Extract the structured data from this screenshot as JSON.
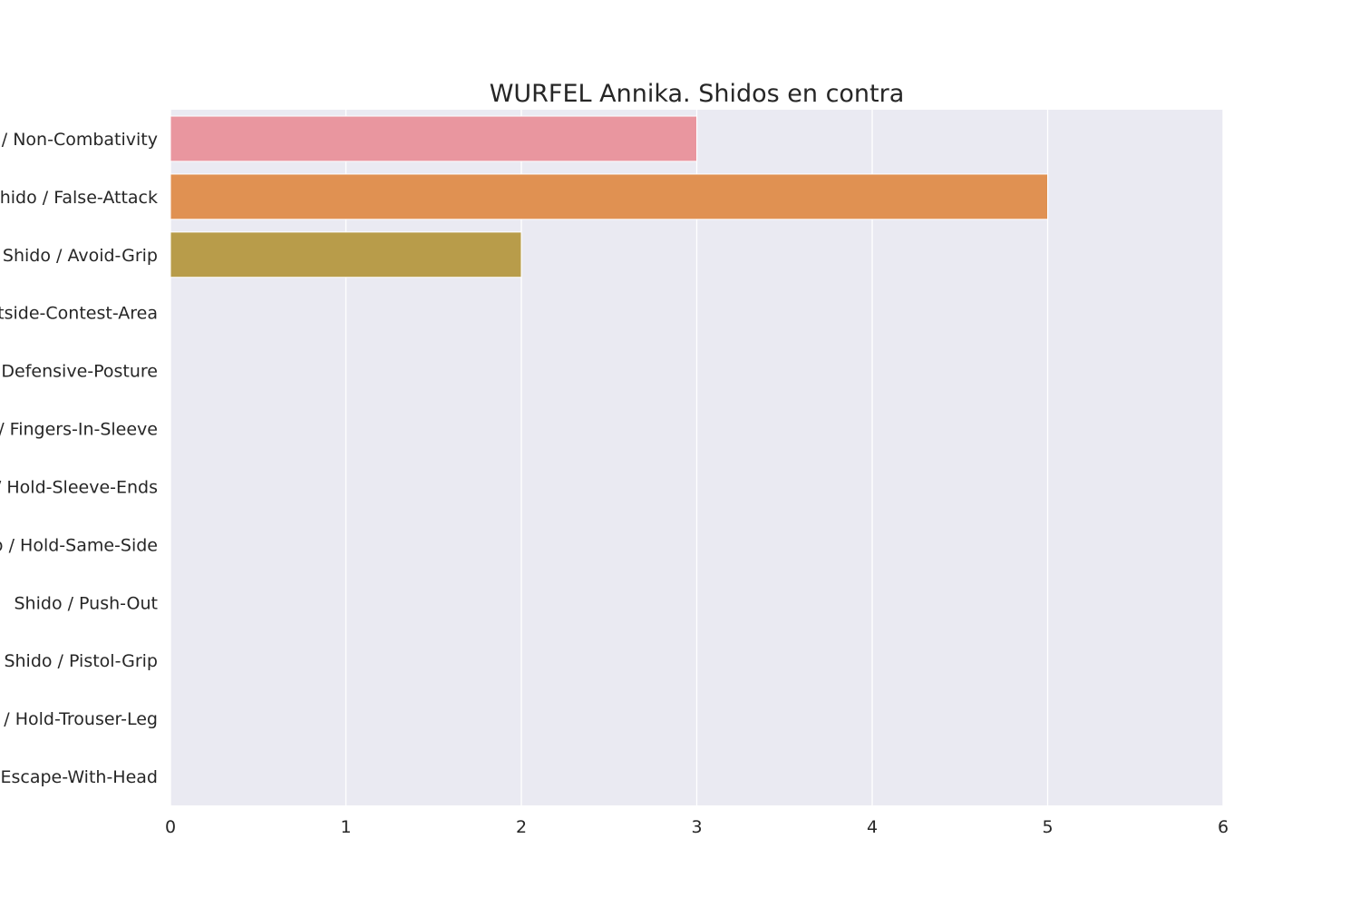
{
  "chart_data": {
    "type": "bar",
    "orientation": "horizontal",
    "title": "WURFEL Annika. Shidos en contra",
    "xlabel": "",
    "ylabel": "",
    "categories": [
      "Shido / Non-Combativity",
      "Shido / False-Attack",
      "Shido / Avoid-Grip",
      "Shido / Outside-Contest-Area",
      "Shido / Defensive-Posture",
      "Shido / Fingers-In-Sleeve",
      "Shido / Hold-Sleeve-Ends",
      "Shido / Hold-Same-Side",
      "Shido / Push-Out",
      "Shido / Pistol-Grip",
      "Shido / Hold-Trouser-Leg",
      "Shido / Escape-With-Head"
    ],
    "values": [
      3,
      5,
      2,
      0,
      0,
      0,
      0,
      0,
      0,
      0,
      0,
      0
    ],
    "colors": [
      "#e9969f",
      "#e09152",
      "#b89c4a",
      "#9aa548",
      "#6fae57",
      "#5aaf8e",
      "#5bab9f",
      "#5ca9b3",
      "#65a4c9",
      "#9e95d6",
      "#cf87c7",
      "#e889ae"
    ],
    "xlim": [
      0,
      6
    ],
    "xticks": [
      0,
      1,
      2,
      3,
      4,
      5,
      6
    ],
    "grid": true,
    "legend": "none",
    "plot_background": "#eaeaf2",
    "grid_color": "#ffffff"
  }
}
